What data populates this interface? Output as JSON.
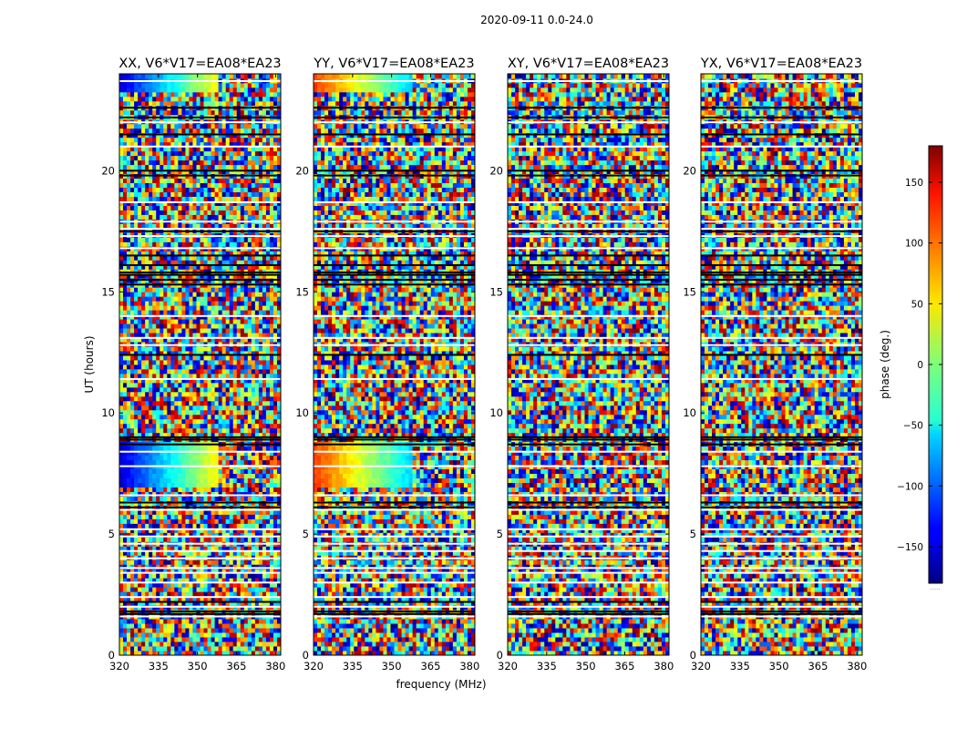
{
  "chart_data": {
    "type": "heatmap",
    "suptitle": "2020-09-11 0.0-24.0",
    "xlabel": "frequency (MHz)",
    "ylabel": "UT (hours)",
    "xlim": [
      320,
      382
    ],
    "ylim": [
      0,
      24
    ],
    "xticks": [
      "320",
      "335",
      "350",
      "365",
      "380"
    ],
    "yticks": [
      "0",
      "5",
      "10",
      "15",
      "20"
    ],
    "colormap": "jet",
    "colorbar": {
      "label": "phase (deg.)",
      "range": [
        -180,
        180
      ],
      "ticks": [
        "-150",
        "-100",
        "-50",
        "0",
        "50",
        "100",
        "150"
      ],
      "footnote": "....."
    },
    "panels": [
      {
        "title": "XX, V6*V17=EA08*EA23",
        "polarization": "XX"
      },
      {
        "title": "YY, V6*V17=EA08*EA23",
        "polarization": "YY"
      },
      {
        "title": "XY, V6*V17=EA08*EA23",
        "polarization": "XY"
      },
      {
        "title": "YX, V6*V17=EA08*EA23",
        "polarization": "YX"
      }
    ],
    "flagged_white_hours": [
      23.7,
      22.0,
      21.0,
      18.7,
      17.9,
      17.6,
      17.3,
      16.8,
      14.0,
      13.1,
      12.8,
      11.4,
      8.4,
      7.8,
      6.6,
      6.0,
      5.2,
      4.9,
      4.6,
      4.3,
      4.0,
      3.6,
      3.4,
      3.0,
      2.4,
      2.0,
      1.6
    ],
    "flagged_black_hours": [
      22.6,
      22.2,
      21.5,
      20.0,
      19.8,
      17.5,
      16.5,
      16.1,
      15.8,
      15.7,
      15.5,
      15.3,
      12.4,
      9.0,
      8.9,
      8.7,
      6.3,
      6.1,
      2.2,
      1.8,
      1.7
    ],
    "calibrator_scans_hours": [
      [
        23.2,
        24.0
      ],
      [
        6.9,
        8.9
      ]
    ]
  },
  "colors": {
    "background": "#ffffff",
    "axes": "#000000",
    "flagged_white": "#ffffff",
    "flagged_black": "#000000"
  }
}
